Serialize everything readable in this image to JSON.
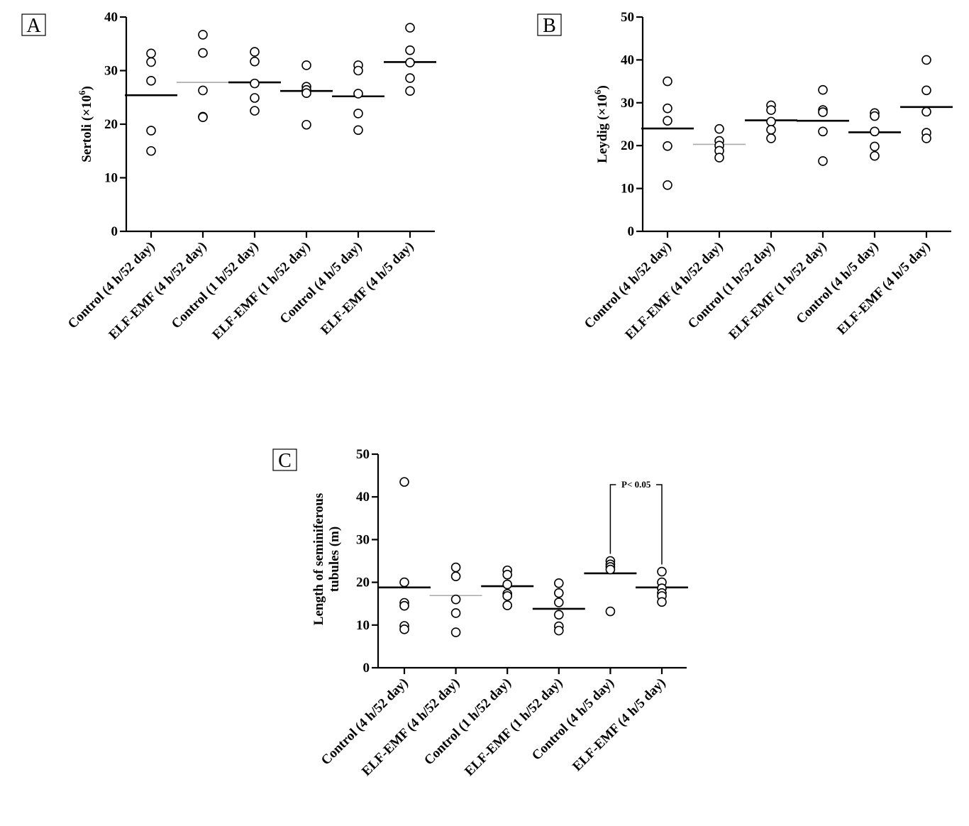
{
  "chart_data": [
    {
      "type": "scatter",
      "panel": "A",
      "ylabel": "Sertoli (×10",
      "ylabel_sup": "6",
      "ylabel_tail": ")",
      "ylim": [
        0,
        40
      ],
      "yticks": [
        "0",
        "10",
        "20",
        "30",
        "40"
      ],
      "categories": [
        "Control (4 h/52 day)",
        "ELF-EMF (4 h/52 day)",
        "Control (1 h/52 day)",
        "ELF-EMF (1 h/52 day)",
        "Control (4 h/5 day)",
        "ELF-EMF (4 h/5 day)"
      ],
      "points": [
        [
          33.2,
          31.6,
          28.1,
          18.8,
          15.0
        ],
        [
          36.7,
          33.3,
          26.3,
          21.4,
          21.3
        ],
        [
          33.5,
          31.7,
          27.6,
          24.9,
          22.5
        ],
        [
          31.0,
          27.0,
          26.4,
          25.8,
          19.9
        ],
        [
          31.0,
          30.0,
          25.7,
          22.0,
          18.9
        ],
        [
          38.0,
          33.8,
          31.5,
          28.6,
          26.2
        ]
      ],
      "means": [
        25.4,
        27.8,
        27.8,
        26.2,
        25.2,
        31.6
      ],
      "mean_colors": [
        "#000000",
        "#a9a9a9",
        "#000000",
        "#000000",
        "#000000",
        "#000000"
      ],
      "grid": false
    },
    {
      "type": "scatter",
      "panel": "B",
      "ylabel": "Leydig (×10",
      "ylabel_sup": "6",
      "ylabel_tail": ")",
      "ylim": [
        0,
        50
      ],
      "yticks": [
        "0",
        "10",
        "20",
        "30",
        "40",
        "50"
      ],
      "categories": [
        "Control (4 h/52 day)",
        "ELF-EMF (4 h/52 day)",
        "Control (1 h/52 day)",
        "ELF-EMF (1 h/52 day)",
        "Control (4 h/5 day)",
        "ELF-EMF (4 h/5 day)"
      ],
      "points": [
        [
          35.0,
          28.7,
          25.8,
          19.9,
          10.8
        ],
        [
          23.9,
          21.1,
          20.0,
          18.8,
          17.2
        ],
        [
          29.4,
          28.3,
          25.6,
          23.7,
          21.7
        ],
        [
          33.0,
          28.3,
          27.8,
          23.3,
          16.4
        ],
        [
          27.6,
          26.9,
          23.3,
          19.8,
          17.6
        ],
        [
          40.0,
          32.9,
          27.9,
          23.0,
          21.7
        ]
      ],
      "means": [
        24.0,
        20.3,
        25.9,
        25.8,
        23.1,
        29.0
      ],
      "mean_colors": [
        "#000000",
        "#a9a9a9",
        "#000000",
        "#000000",
        "#000000",
        "#000000"
      ],
      "grid": false
    },
    {
      "type": "scatter",
      "panel": "C",
      "ylabel_line1": "Length of seminiferous",
      "ylabel_line2": "tubules (m)",
      "ylim": [
        0,
        50
      ],
      "yticks": [
        "0",
        "10",
        "20",
        "30",
        "40",
        "50"
      ],
      "categories": [
        "Control (4 h/52 day)",
        "ELF-EMF (4 h/52 day)",
        "Control (1 h/52 day)",
        "ELF-EMF (1 h/52 day)",
        "Control (4 h/5 day)",
        "ELF-EMF (4 h/5 day)"
      ],
      "points": [
        [
          43.5,
          20.0,
          15.2,
          14.5,
          9.8,
          9.0
        ],
        [
          23.5,
          21.4,
          16.0,
          12.8,
          8.3
        ],
        [
          22.8,
          21.8,
          19.5,
          17.3,
          16.8,
          14.6
        ],
        [
          19.8,
          17.5,
          15.3,
          12.4,
          9.7,
          8.7
        ],
        [
          25.0,
          24.2,
          23.6,
          23.0,
          13.2
        ],
        [
          22.5,
          20.0,
          18.6,
          17.5,
          16.8,
          15.4
        ]
      ],
      "means": [
        18.8,
        16.9,
        19.1,
        13.8,
        22.1,
        18.8
      ],
      "mean_colors": [
        "#000000",
        "#a9a9a9",
        "#000000",
        "#000000",
        "#000000",
        "#000000"
      ],
      "annotation": {
        "text": "P< 0.05",
        "between": [
          4,
          5
        ]
      },
      "grid": false
    }
  ]
}
